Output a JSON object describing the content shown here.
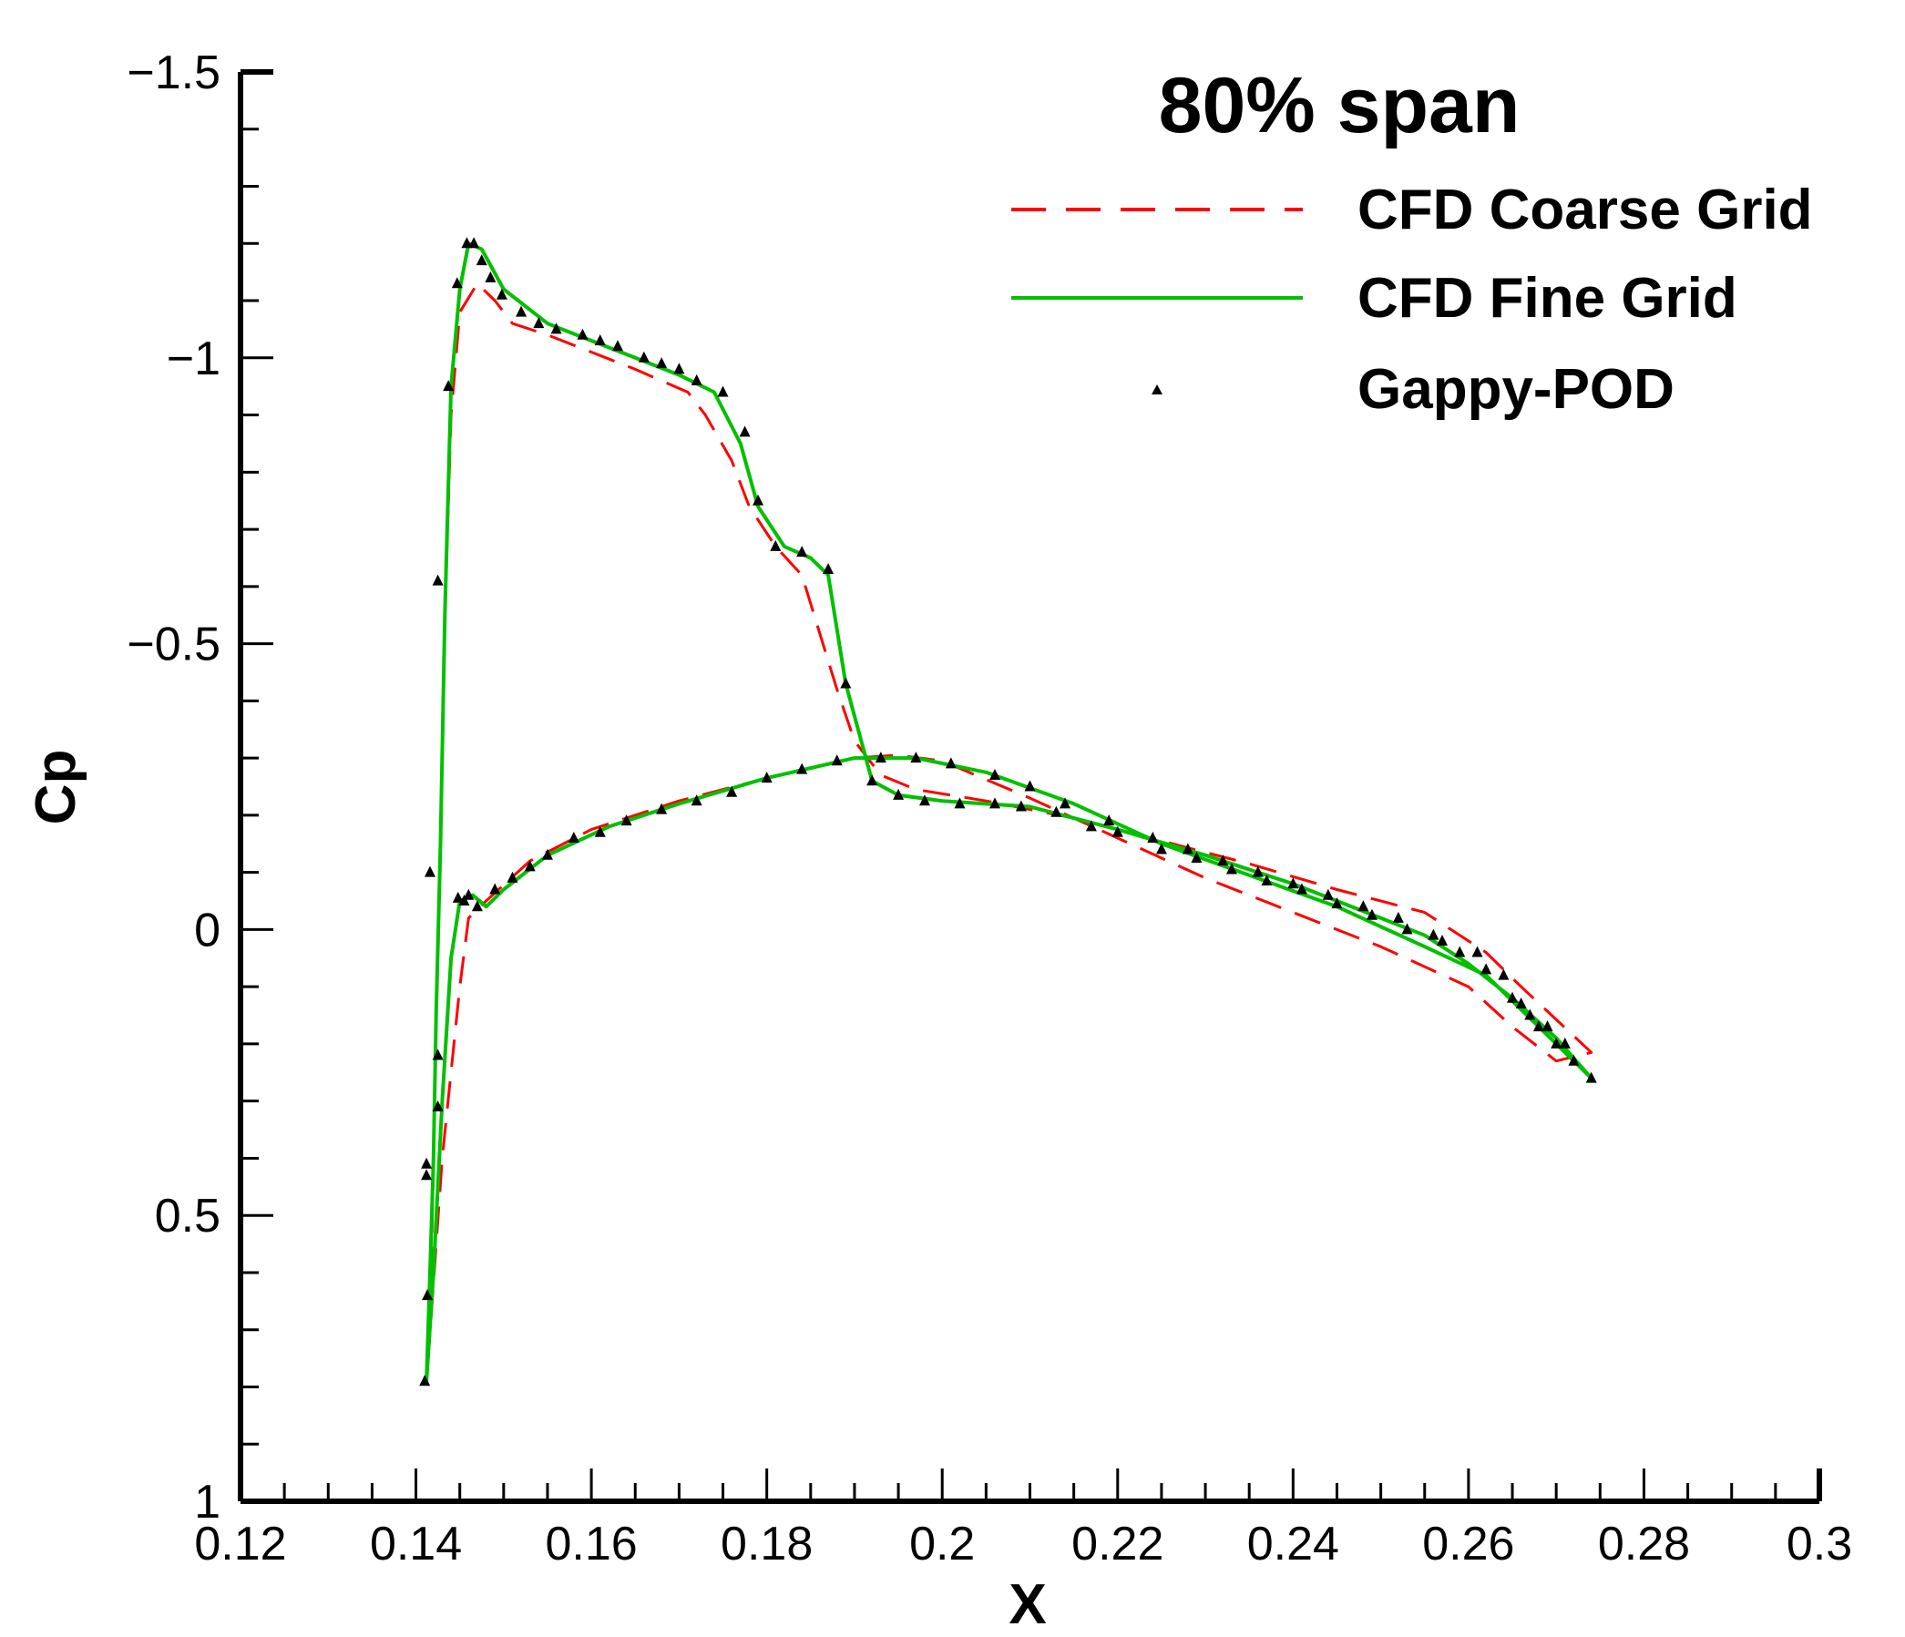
{
  "chart_data": {
    "type": "line",
    "title": "80% span",
    "xlabel": "X",
    "ylabel": "Cp",
    "xlim": [
      0.12,
      0.3
    ],
    "ylim": [
      1,
      -1.5
    ],
    "y_inverted": true,
    "grid": false,
    "legend_position": "top-right",
    "x_ticks": [
      "0.12",
      "0.14",
      "0.16",
      "0.18",
      "0.2",
      "0.22",
      "0.24",
      "0.26",
      "0.28",
      "0.3"
    ],
    "y_ticks": [
      {
        "value": -1.5,
        "label": "−1.5"
      },
      {
        "value": -1.0,
        "label": "−1"
      },
      {
        "value": -0.5,
        "label": "−0.5"
      },
      {
        "value": 0,
        "label": "0"
      },
      {
        "value": 0.5,
        "label": "0.5"
      },
      {
        "value": 1,
        "label": "1"
      }
    ],
    "series": [
      {
        "name": "CFD Coarse Grid",
        "style": "dashed",
        "color": "#ff0000",
        "points": [
          [
            0.1414,
            0.75
          ],
          [
            0.1418,
            0.55
          ],
          [
            0.142,
            0.4
          ],
          [
            0.1423,
            0.15
          ],
          [
            0.1428,
            -0.15
          ],
          [
            0.1433,
            -0.55
          ],
          [
            0.144,
            -0.9
          ],
          [
            0.145,
            -1.08
          ],
          [
            0.147,
            -1.13
          ],
          [
            0.149,
            -1.1
          ],
          [
            0.151,
            -1.06
          ],
          [
            0.155,
            -1.04
          ],
          [
            0.16,
            -1.01
          ],
          [
            0.165,
            -0.98
          ],
          [
            0.171,
            -0.94
          ],
          [
            0.173,
            -0.9
          ],
          [
            0.176,
            -0.82
          ],
          [
            0.178,
            -0.74
          ],
          [
            0.181,
            -0.67
          ],
          [
            0.184,
            -0.62
          ],
          [
            0.186,
            -0.52
          ],
          [
            0.188,
            -0.42
          ],
          [
            0.19,
            -0.33
          ],
          [
            0.193,
            -0.27
          ],
          [
            0.197,
            -0.245
          ],
          [
            0.205,
            -0.225
          ],
          [
            0.215,
            -0.195
          ],
          [
            0.225,
            -0.155
          ],
          [
            0.235,
            -0.115
          ],
          [
            0.245,
            -0.07
          ],
          [
            0.255,
            -0.03
          ],
          [
            0.262,
            0.04
          ],
          [
            0.266,
            0.1
          ],
          [
            0.274,
            0.215
          ],
          [
            0.27,
            0.23
          ],
          [
            0.265,
            0.17
          ],
          [
            0.26,
            0.1
          ],
          [
            0.25,
            0.03
          ],
          [
            0.24,
            -0.03
          ],
          [
            0.23,
            -0.09
          ],
          [
            0.22,
            -0.16
          ],
          [
            0.21,
            -0.23
          ],
          [
            0.2,
            -0.295
          ],
          [
            0.195,
            -0.305
          ],
          [
            0.19,
            -0.3
          ],
          [
            0.18,
            -0.265
          ],
          [
            0.17,
            -0.225
          ],
          [
            0.16,
            -0.175
          ],
          [
            0.153,
            -0.12
          ],
          [
            0.148,
            -0.05
          ],
          [
            0.146,
            -0.02
          ],
          [
            0.145,
            0.1
          ],
          [
            0.143,
            0.4
          ],
          [
            0.1414,
            0.75
          ]
        ]
      },
      {
        "name": "CFD Fine Grid",
        "style": "solid",
        "color": "#00c000",
        "points": [
          [
            0.1412,
            0.79
          ],
          [
            0.1416,
            0.6
          ],
          [
            0.142,
            0.4
          ],
          [
            0.1423,
            0.15
          ],
          [
            0.1428,
            -0.15
          ],
          [
            0.1433,
            -0.55
          ],
          [
            0.144,
            -0.95
          ],
          [
            0.145,
            -1.12
          ],
          [
            0.146,
            -1.2
          ],
          [
            0.1475,
            -1.19
          ],
          [
            0.15,
            -1.12
          ],
          [
            0.155,
            -1.06
          ],
          [
            0.16,
            -1.03
          ],
          [
            0.165,
            -1.0
          ],
          [
            0.17,
            -0.97
          ],
          [
            0.174,
            -0.94
          ],
          [
            0.177,
            -0.85
          ],
          [
            0.179,
            -0.74
          ],
          [
            0.182,
            -0.67
          ],
          [
            0.185,
            -0.65
          ],
          [
            0.187,
            -0.62
          ],
          [
            0.189,
            -0.43
          ],
          [
            0.192,
            -0.26
          ],
          [
            0.195,
            -0.235
          ],
          [
            0.2,
            -0.225
          ],
          [
            0.21,
            -0.215
          ],
          [
            0.22,
            -0.175
          ],
          [
            0.23,
            -0.13
          ],
          [
            0.24,
            -0.08
          ],
          [
            0.25,
            -0.02
          ],
          [
            0.255,
            0.01
          ],
          [
            0.26,
            0.06
          ],
          [
            0.265,
            0.12
          ],
          [
            0.27,
            0.19
          ],
          [
            0.274,
            0.26
          ],
          [
            0.27,
            0.2
          ],
          [
            0.266,
            0.14
          ],
          [
            0.262,
            0.08
          ],
          [
            0.255,
            0.03
          ],
          [
            0.245,
            -0.04
          ],
          [
            0.235,
            -0.095
          ],
          [
            0.225,
            -0.15
          ],
          [
            0.215,
            -0.22
          ],
          [
            0.205,
            -0.275
          ],
          [
            0.197,
            -0.3
          ],
          [
            0.19,
            -0.3
          ],
          [
            0.18,
            -0.265
          ],
          [
            0.17,
            -0.22
          ],
          [
            0.162,
            -0.18
          ],
          [
            0.155,
            -0.13
          ],
          [
            0.15,
            -0.07
          ],
          [
            0.148,
            -0.04
          ],
          [
            0.1465,
            -0.06
          ],
          [
            0.145,
            -0.05
          ],
          [
            0.144,
            0.05
          ],
          [
            0.143,
            0.3
          ],
          [
            0.142,
            0.6
          ],
          [
            0.1412,
            0.79
          ]
        ]
      },
      {
        "name": "Gappy-POD",
        "style": "markers",
        "marker": "triangle",
        "color": "#000000",
        "points": [
          [
            0.141,
            0.79
          ],
          [
            0.1412,
            0.43
          ],
          [
            0.1412,
            0.41
          ],
          [
            0.1413,
            0.64
          ],
          [
            0.1416,
            -0.1
          ],
          [
            0.1425,
            -0.61
          ],
          [
            0.1425,
            0.22
          ],
          [
            0.1425,
            0.31
          ],
          [
            0.1437,
            -0.95
          ],
          [
            0.1447,
            -1.13
          ],
          [
            0.1455,
            -0.05
          ],
          [
            0.1458,
            -1.2
          ],
          [
            0.1466,
            -1.2
          ],
          [
            0.1475,
            -1.17
          ],
          [
            0.1485,
            -1.14
          ],
          [
            0.1498,
            -1.11
          ],
          [
            0.152,
            -1.08
          ],
          [
            0.154,
            -1.06
          ],
          [
            0.156,
            -1.05
          ],
          [
            0.159,
            -1.04
          ],
          [
            0.161,
            -1.03
          ],
          [
            0.163,
            -1.02
          ],
          [
            0.166,
            -1.0
          ],
          [
            0.168,
            -0.99
          ],
          [
            0.17,
            -0.98
          ],
          [
            0.172,
            -0.96
          ],
          [
            0.175,
            -0.94
          ],
          [
            0.1775,
            -0.87
          ],
          [
            0.179,
            -0.75
          ],
          [
            0.181,
            -0.67
          ],
          [
            0.184,
            -0.66
          ],
          [
            0.187,
            -0.63
          ],
          [
            0.189,
            -0.43
          ],
          [
            0.192,
            -0.26
          ],
          [
            0.195,
            -0.235
          ],
          [
            0.198,
            -0.225
          ],
          [
            0.202,
            -0.22
          ],
          [
            0.206,
            -0.22
          ],
          [
            0.209,
            -0.215
          ],
          [
            0.213,
            -0.205
          ],
          [
            0.217,
            -0.18
          ],
          [
            0.22,
            -0.17
          ],
          [
            0.225,
            -0.14
          ],
          [
            0.229,
            -0.125
          ],
          [
            0.233,
            -0.105
          ],
          [
            0.237,
            -0.085
          ],
          [
            0.241,
            -0.07
          ],
          [
            0.245,
            -0.045
          ],
          [
            0.249,
            -0.025
          ],
          [
            0.253,
            0.0
          ],
          [
            0.257,
            0.02
          ],
          [
            0.261,
            0.04
          ],
          [
            0.264,
            0.08
          ],
          [
            0.266,
            0.13
          ],
          [
            0.268,
            0.17
          ],
          [
            0.27,
            0.2
          ],
          [
            0.272,
            0.23
          ],
          [
            0.274,
            0.26
          ],
          [
            0.271,
            0.2
          ],
          [
            0.269,
            0.17
          ],
          [
            0.267,
            0.15
          ],
          [
            0.265,
            0.12
          ],
          [
            0.262,
            0.07
          ],
          [
            0.259,
            0.04
          ],
          [
            0.256,
            0.01
          ],
          [
            0.252,
            -0.02
          ],
          [
            0.248,
            -0.04
          ],
          [
            0.244,
            -0.06
          ],
          [
            0.24,
            -0.08
          ],
          [
            0.236,
            -0.1
          ],
          [
            0.232,
            -0.12
          ],
          [
            0.228,
            -0.14
          ],
          [
            0.224,
            -0.16
          ],
          [
            0.219,
            -0.19
          ],
          [
            0.214,
            -0.22
          ],
          [
            0.21,
            -0.25
          ],
          [
            0.206,
            -0.27
          ],
          [
            0.201,
            -0.29
          ],
          [
            0.197,
            -0.3
          ],
          [
            0.193,
            -0.3
          ],
          [
            0.188,
            -0.295
          ],
          [
            0.184,
            -0.28
          ],
          [
            0.18,
            -0.265
          ],
          [
            0.176,
            -0.24
          ],
          [
            0.172,
            -0.225
          ],
          [
            0.168,
            -0.21
          ],
          [
            0.164,
            -0.19
          ],
          [
            0.161,
            -0.17
          ],
          [
            0.158,
            -0.16
          ],
          [
            0.155,
            -0.13
          ],
          [
            0.153,
            -0.11
          ],
          [
            0.151,
            -0.09
          ],
          [
            0.149,
            -0.07
          ],
          [
            0.147,
            -0.04
          ],
          [
            0.146,
            -0.06
          ],
          [
            0.1448,
            -0.055
          ]
        ]
      }
    ],
    "legend": [
      {
        "label": "CFD Coarse Grid",
        "style": "dashed",
        "color": "#ff0000"
      },
      {
        "label": "CFD Fine Grid",
        "style": "solid",
        "color": "#00c000"
      },
      {
        "label": "Gappy-POD",
        "style": "triangle",
        "color": "#000000"
      }
    ]
  }
}
